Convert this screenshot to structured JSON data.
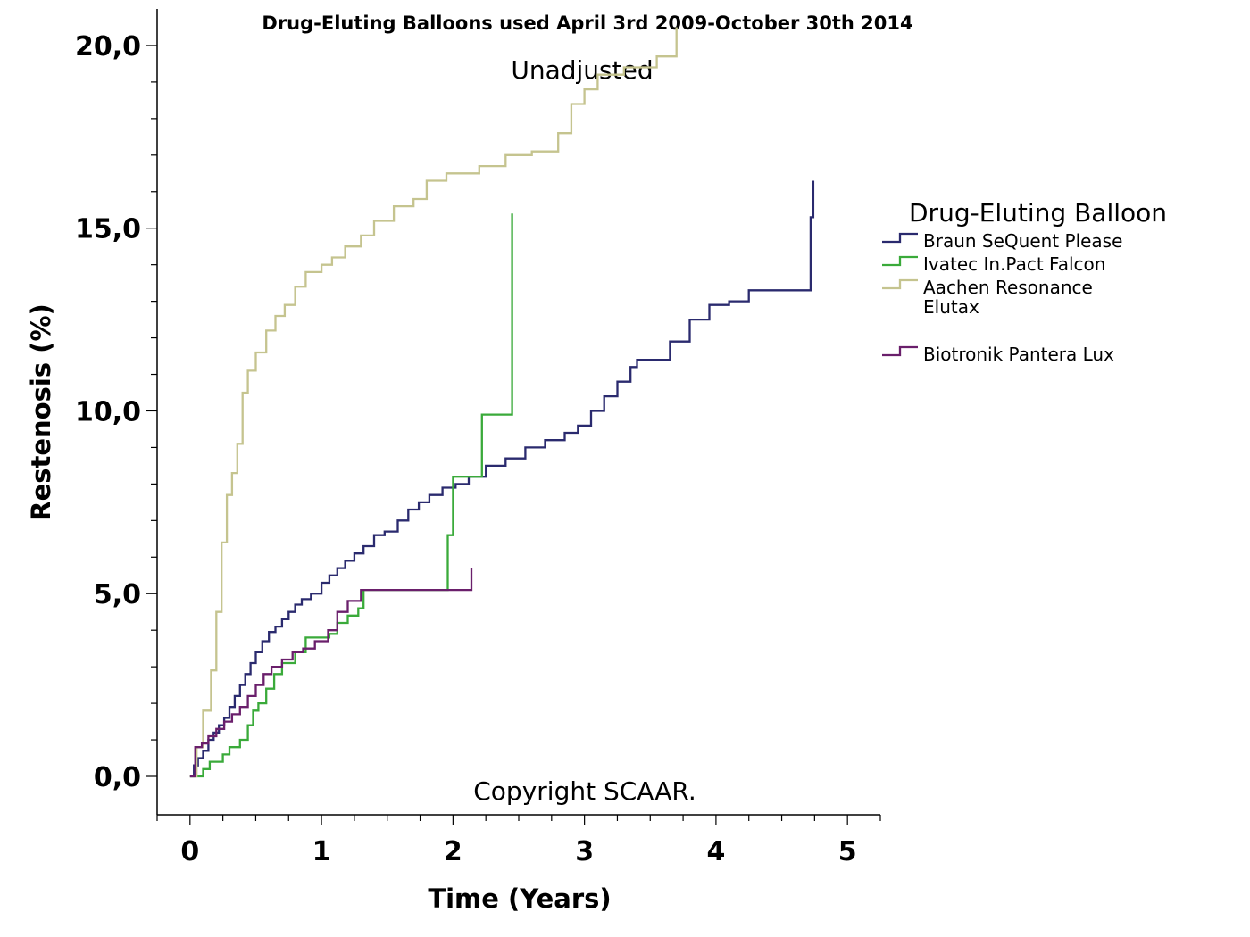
{
  "chart_data": {
    "type": "line",
    "title": "Drug-Eluting Balloons used April 3rd 2009-October 30th 2014",
    "subtitle": "Unadjusted",
    "annotation": "Copyright SCAAR.",
    "xlabel": "Time (Years)",
    "ylabel": "Restenosis (%)",
    "xlim": [
      -0.25,
      5.25
    ],
    "ylim": [
      -1.05,
      21.0
    ],
    "xticks": [
      "0",
      "1",
      "2",
      "3",
      "4",
      "5"
    ],
    "yticks": [
      "0,0",
      "5,0",
      "10,0",
      "15,0",
      "20,0"
    ],
    "grid": false,
    "step": true,
    "legend": {
      "title": "Drug-Eluting Balloon",
      "placement": "right"
    },
    "series": [
      {
        "name": "Braun SeQuent Please",
        "color": "#2a2a6e",
        "x": [
          0.0,
          0.03,
          0.06,
          0.1,
          0.14,
          0.18,
          0.22,
          0.26,
          0.3,
          0.34,
          0.38,
          0.42,
          0.46,
          0.5,
          0.55,
          0.6,
          0.65,
          0.7,
          0.75,
          0.8,
          0.85,
          0.92,
          1.0,
          1.06,
          1.12,
          1.18,
          1.25,
          1.32,
          1.4,
          1.48,
          1.58,
          1.66,
          1.74,
          1.82,
          1.92,
          2.02,
          2.12,
          2.25,
          2.4,
          2.55,
          2.7,
          2.85,
          2.95,
          3.05,
          3.15,
          3.25,
          3.35,
          3.4,
          3.65,
          3.8,
          3.95,
          4.1,
          4.25,
          4.5,
          4.72,
          4.74
        ],
        "y": [
          0.0,
          0.3,
          0.5,
          0.7,
          1.0,
          1.2,
          1.4,
          1.6,
          1.9,
          2.2,
          2.5,
          2.8,
          3.1,
          3.4,
          3.7,
          3.95,
          4.1,
          4.3,
          4.5,
          4.7,
          4.85,
          5.0,
          5.3,
          5.5,
          5.7,
          5.9,
          6.1,
          6.3,
          6.6,
          6.7,
          7.0,
          7.3,
          7.5,
          7.7,
          7.9,
          8.0,
          8.2,
          8.5,
          8.7,
          9.0,
          9.2,
          9.4,
          9.6,
          10.0,
          10.4,
          10.8,
          11.2,
          11.4,
          11.9,
          12.5,
          12.9,
          13.0,
          13.3,
          13.3,
          15.3,
          16.3
        ]
      },
      {
        "name": "Ivatec In.Pact Falcon",
        "color": "#3aaa3a",
        "x": [
          0.0,
          0.05,
          0.1,
          0.15,
          0.25,
          0.3,
          0.38,
          0.44,
          0.48,
          0.52,
          0.58,
          0.64,
          0.7,
          0.8,
          0.88,
          0.98,
          1.06,
          1.12,
          1.2,
          1.28,
          1.32,
          1.5,
          1.7,
          1.9,
          1.96,
          2.0,
          2.22,
          2.45,
          2.45
        ],
        "y": [
          0.0,
          0.0,
          0.2,
          0.4,
          0.6,
          0.8,
          1.0,
          1.4,
          1.8,
          2.0,
          2.4,
          2.8,
          3.1,
          3.4,
          3.8,
          3.8,
          3.9,
          4.2,
          4.4,
          4.6,
          5.1,
          5.1,
          5.1,
          5.1,
          6.6,
          8.2,
          9.9,
          9.9,
          15.4
        ]
      },
      {
        "name": "Aachen Resonance Elutax",
        "color": "#c5c48f",
        "x": [
          0.0,
          0.05,
          0.1,
          0.16,
          0.2,
          0.24,
          0.28,
          0.32,
          0.36,
          0.4,
          0.44,
          0.5,
          0.58,
          0.65,
          0.72,
          0.8,
          0.88,
          1.0,
          1.08,
          1.18,
          1.3,
          1.4,
          1.55,
          1.7,
          1.8,
          1.95,
          2.2,
          2.4,
          2.6,
          2.8,
          2.9,
          3.0,
          3.1,
          3.3,
          3.55,
          3.7
        ],
        "y": [
          0.0,
          0.8,
          1.8,
          2.9,
          4.5,
          6.4,
          7.7,
          8.3,
          9.1,
          10.5,
          11.1,
          11.6,
          12.2,
          12.6,
          12.9,
          13.4,
          13.8,
          14.0,
          14.2,
          14.5,
          14.8,
          15.2,
          15.6,
          15.8,
          16.3,
          16.5,
          16.7,
          17.0,
          17.1,
          17.6,
          18.4,
          18.8,
          19.2,
          19.4,
          19.7,
          20.5
        ]
      },
      {
        "name": "Biotronik Pantera Lux",
        "color": "#6a1f6b",
        "x": [
          0.0,
          0.04,
          0.09,
          0.14,
          0.2,
          0.26,
          0.32,
          0.38,
          0.44,
          0.5,
          0.56,
          0.62,
          0.7,
          0.78,
          0.86,
          0.95,
          1.05,
          1.12,
          1.2,
          1.3,
          1.45,
          1.6,
          1.8,
          1.95,
          2.1,
          2.14,
          2.14
        ],
        "y": [
          0.0,
          0.8,
          0.9,
          1.1,
          1.3,
          1.5,
          1.7,
          1.9,
          2.2,
          2.5,
          2.8,
          3.0,
          3.2,
          3.4,
          3.5,
          3.7,
          4.0,
          4.5,
          4.8,
          5.1,
          5.1,
          5.1,
          5.1,
          5.1,
          5.1,
          5.1,
          5.7
        ]
      }
    ]
  }
}
